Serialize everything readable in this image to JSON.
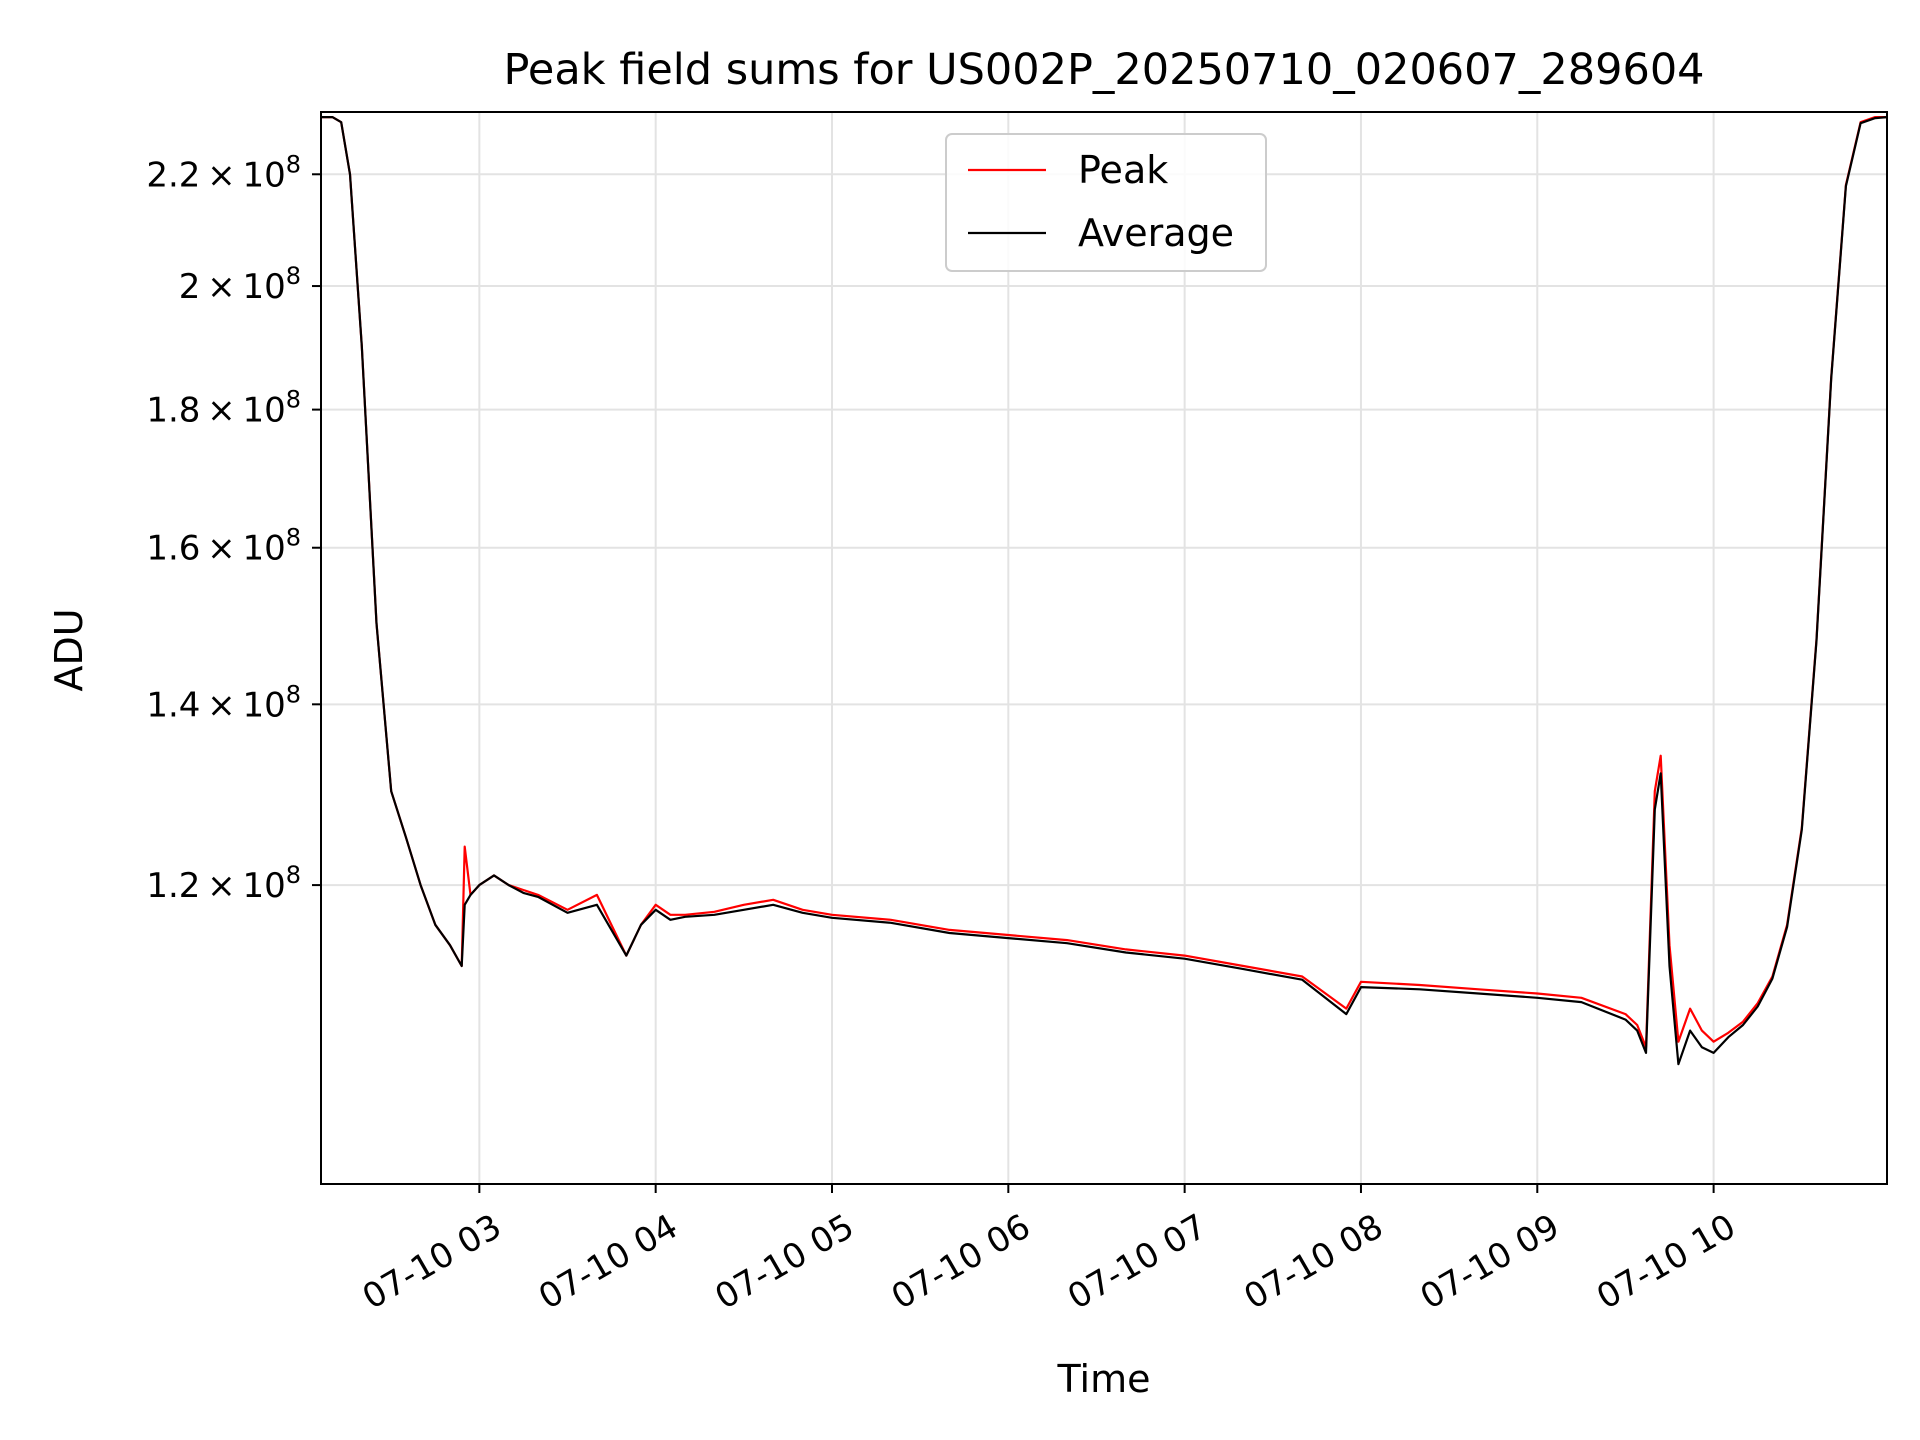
{
  "chart_data": {
    "type": "line",
    "title": "Peak field sums for US002P_20250710_020607_289604",
    "xlabel": "Time",
    "ylabel": "ADU",
    "xlim": [
      "2025-07-10T02:06:07",
      "2025-07-10T10:59:00"
    ],
    "ylim": [
      93000000,
      232000000
    ],
    "yscale": "log",
    "grid": true,
    "legend_location": "upper center",
    "x_ticks": [
      "07-10 03",
      "07-10 04",
      "07-10 05",
      "07-10 06",
      "07-10 07",
      "07-10 08",
      "07-10 09",
      "07-10 10"
    ],
    "x_tick_values": [
      "2025-07-10T03:00",
      "2025-07-10T04:00",
      "2025-07-10T05:00",
      "2025-07-10T06:00",
      "2025-07-10T07:00",
      "2025-07-10T08:00",
      "2025-07-10T09:00",
      "2025-07-10T10:00"
    ],
    "y_ticks": [
      {
        "value": 120000000,
        "mantissa": "1.2",
        "exponent": "8"
      },
      {
        "value": 140000000,
        "mantissa": "1.4",
        "exponent": "8"
      },
      {
        "value": 160000000,
        "mantissa": "1.6",
        "exponent": "8"
      },
      {
        "value": 180000000,
        "mantissa": "1.8",
        "exponent": "8"
      },
      {
        "value": 200000000,
        "mantissa": "2",
        "exponent": "8"
      },
      {
        "value": 220000000,
        "mantissa": "2.2",
        "exponent": "8"
      }
    ],
    "x": [
      "2025-07-10T02:06",
      "2025-07-10T02:10",
      "2025-07-10T02:13",
      "2025-07-10T02:16",
      "2025-07-10T02:20",
      "2025-07-10T02:25",
      "2025-07-10T02:30",
      "2025-07-10T02:35",
      "2025-07-10T02:40",
      "2025-07-10T02:45",
      "2025-07-10T02:50",
      "2025-07-10T02:54",
      "2025-07-10T02:55",
      "2025-07-10T02:57",
      "2025-07-10T03:00",
      "2025-07-10T03:05",
      "2025-07-10T03:10",
      "2025-07-10T03:15",
      "2025-07-10T03:20",
      "2025-07-10T03:30",
      "2025-07-10T03:40",
      "2025-07-10T03:50",
      "2025-07-10T03:55",
      "2025-07-10T04:00",
      "2025-07-10T04:05",
      "2025-07-10T04:10",
      "2025-07-10T04:20",
      "2025-07-10T04:30",
      "2025-07-10T04:40",
      "2025-07-10T04:50",
      "2025-07-10T05:00",
      "2025-07-10T05:20",
      "2025-07-10T05:40",
      "2025-07-10T06:00",
      "2025-07-10T06:20",
      "2025-07-10T06:40",
      "2025-07-10T07:00",
      "2025-07-10T07:20",
      "2025-07-10T07:40",
      "2025-07-10T07:55",
      "2025-07-10T08:00",
      "2025-07-10T08:20",
      "2025-07-10T08:40",
      "2025-07-10T09:00",
      "2025-07-10T09:15",
      "2025-07-10T09:30",
      "2025-07-10T09:34",
      "2025-07-10T09:37",
      "2025-07-10T09:40",
      "2025-07-10T09:42",
      "2025-07-10T09:45",
      "2025-07-10T09:48",
      "2025-07-10T09:52",
      "2025-07-10T09:56",
      "2025-07-10T10:00",
      "2025-07-10T10:05",
      "2025-07-10T10:10",
      "2025-07-10T10:15",
      "2025-07-10T10:20",
      "2025-07-10T10:25",
      "2025-07-10T10:30",
      "2025-07-10T10:35",
      "2025-07-10T10:40",
      "2025-07-10T10:45",
      "2025-07-10T10:50",
      "2025-07-10T10:55",
      "2025-07-10T10:59"
    ],
    "series": [
      {
        "name": "Peak",
        "color": "#ff0000",
        "values": [
          231000000,
          231000000,
          230000000,
          220000000,
          190000000,
          150000000,
          130000000,
          125000000,
          120000000,
          116000000,
          114000000,
          112000000,
          124000000,
          119000000,
          120000000,
          121000000,
          120000000,
          119500000,
          119000000,
          117500000,
          119000000,
          113000000,
          116000000,
          118000000,
          117000000,
          117000000,
          117300000,
          118000000,
          118500000,
          117500000,
          117000000,
          116500000,
          115500000,
          115000000,
          114500000,
          113600000,
          113000000,
          112000000,
          111000000,
          108000000,
          110500000,
          110200000,
          109800000,
          109400000,
          109000000,
          107500000,
          106500000,
          104500000,
          130000000,
          134000000,
          114000000,
          105000000,
          108000000,
          106000000,
          105000000,
          105800000,
          106800000,
          108500000,
          111000000,
          116000000,
          126000000,
          148000000,
          185000000,
          218000000,
          230000000,
          231000000,
          231000000
        ]
      },
      {
        "name": "Average",
        "color": "#000000",
        "values": [
          231000000,
          231000000,
          230000000,
          220000000,
          190000000,
          150000000,
          130000000,
          125000000,
          120000000,
          116000000,
          114000000,
          112000000,
          118000000,
          119000000,
          120000000,
          121000000,
          120000000,
          119200000,
          118800000,
          117200000,
          118000000,
          113000000,
          116000000,
          117500000,
          116500000,
          116800000,
          117000000,
          117500000,
          118000000,
          117200000,
          116700000,
          116200000,
          115200000,
          114700000,
          114200000,
          113300000,
          112700000,
          111700000,
          110700000,
          107500000,
          110000000,
          109800000,
          109400000,
          109000000,
          108600000,
          107000000,
          106000000,
          104000000,
          128000000,
          132000000,
          112000000,
          103000000,
          106000000,
          104500000,
          104000000,
          105400000,
          106500000,
          108200000,
          110800000,
          115800000,
          125800000,
          147800000,
          184800000,
          217800000,
          229800000,
          230800000,
          231000000
        ]
      }
    ]
  }
}
